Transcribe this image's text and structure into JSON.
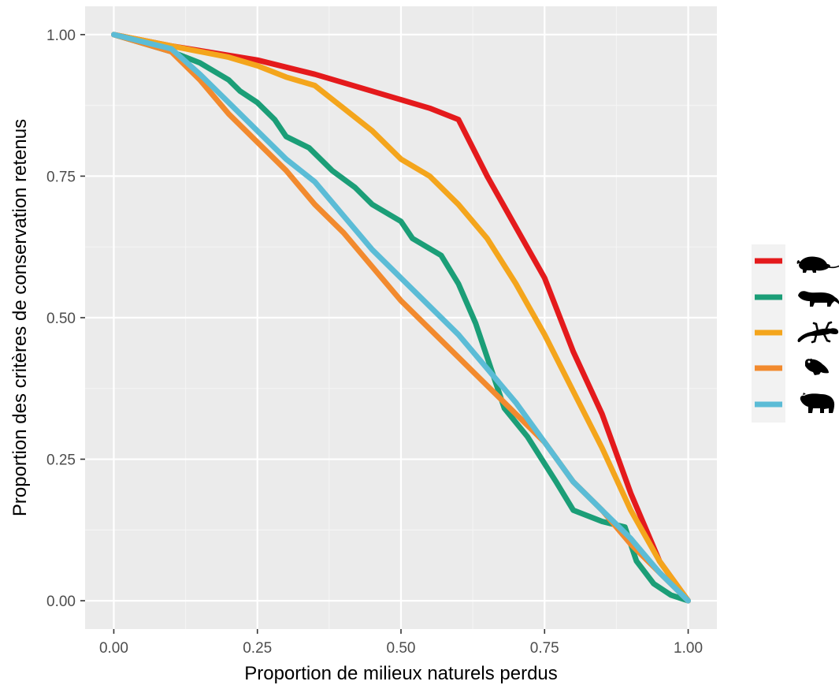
{
  "chart_data": {
    "type": "line",
    "title": "",
    "xlabel": "Proportion de milieux naturels perdus",
    "ylabel": "Proportion des critères de conservation retenus",
    "xlim": [
      -0.05,
      1.05
    ],
    "ylim": [
      -0.05,
      1.05
    ],
    "x_ticks": [
      "0.00",
      "0.25",
      "0.50",
      "0.75",
      "1.00"
    ],
    "y_ticks": [
      "0.00",
      "0.25",
      "0.50",
      "0.75",
      "1.00"
    ],
    "grid": true,
    "legend_position": "right",
    "series": [
      {
        "icon": "rodent-icon",
        "color": "#E41A1C",
        "points": [
          [
            0,
            1.0
          ],
          [
            0.1,
            0.98
          ],
          [
            0.25,
            0.955
          ],
          [
            0.35,
            0.93
          ],
          [
            0.45,
            0.9
          ],
          [
            0.55,
            0.87
          ],
          [
            0.6,
            0.85
          ],
          [
            0.65,
            0.75
          ],
          [
            0.7,
            0.66
          ],
          [
            0.75,
            0.57
          ],
          [
            0.8,
            0.44
          ],
          [
            0.85,
            0.33
          ],
          [
            0.9,
            0.19
          ],
          [
            0.95,
            0.07
          ],
          [
            1.0,
            0.0
          ]
        ]
      },
      {
        "icon": "mustelid-icon",
        "color": "#1B9E77",
        "points": [
          [
            0,
            1.0
          ],
          [
            0.1,
            0.97
          ],
          [
            0.15,
            0.95
          ],
          [
            0.2,
            0.92
          ],
          [
            0.22,
            0.9
          ],
          [
            0.25,
            0.88
          ],
          [
            0.28,
            0.85
          ],
          [
            0.3,
            0.82
          ],
          [
            0.34,
            0.8
          ],
          [
            0.38,
            0.76
          ],
          [
            0.42,
            0.73
          ],
          [
            0.45,
            0.7
          ],
          [
            0.5,
            0.67
          ],
          [
            0.52,
            0.64
          ],
          [
            0.57,
            0.61
          ],
          [
            0.6,
            0.56
          ],
          [
            0.63,
            0.49
          ],
          [
            0.65,
            0.43
          ],
          [
            0.68,
            0.34
          ],
          [
            0.72,
            0.29
          ],
          [
            0.77,
            0.21
          ],
          [
            0.8,
            0.16
          ],
          [
            0.85,
            0.14
          ],
          [
            0.89,
            0.13
          ],
          [
            0.91,
            0.07
          ],
          [
            0.94,
            0.03
          ],
          [
            0.97,
            0.01
          ],
          [
            1.0,
            0.0
          ]
        ]
      },
      {
        "icon": "salamander-icon",
        "color": "#F4A51C",
        "points": [
          [
            0,
            1.0
          ],
          [
            0.1,
            0.98
          ],
          [
            0.2,
            0.96
          ],
          [
            0.25,
            0.945
          ],
          [
            0.3,
            0.925
          ],
          [
            0.35,
            0.91
          ],
          [
            0.4,
            0.87
          ],
          [
            0.45,
            0.83
          ],
          [
            0.5,
            0.78
          ],
          [
            0.55,
            0.75
          ],
          [
            0.6,
            0.7
          ],
          [
            0.65,
            0.64
          ],
          [
            0.7,
            0.56
          ],
          [
            0.75,
            0.47
          ],
          [
            0.8,
            0.37
          ],
          [
            0.85,
            0.27
          ],
          [
            0.9,
            0.16
          ],
          [
            0.95,
            0.07
          ],
          [
            1.0,
            0.0
          ]
        ]
      },
      {
        "icon": "frog-icon",
        "color": "#F28A2E",
        "points": [
          [
            0,
            1.0
          ],
          [
            0.1,
            0.97
          ],
          [
            0.15,
            0.92
          ],
          [
            0.2,
            0.86
          ],
          [
            0.25,
            0.81
          ],
          [
            0.3,
            0.76
          ],
          [
            0.35,
            0.7
          ],
          [
            0.4,
            0.65
          ],
          [
            0.45,
            0.59
          ],
          [
            0.5,
            0.53
          ],
          [
            0.55,
            0.48
          ],
          [
            0.6,
            0.43
          ],
          [
            0.65,
            0.38
          ],
          [
            0.7,
            0.33
          ],
          [
            0.75,
            0.28
          ],
          [
            0.8,
            0.21
          ],
          [
            0.85,
            0.16
          ],
          [
            0.9,
            0.1
          ],
          [
            0.95,
            0.05
          ],
          [
            1.0,
            0.0
          ]
        ]
      },
      {
        "icon": "bear-icon",
        "color": "#5BBCD6",
        "points": [
          [
            0,
            1.0
          ],
          [
            0.1,
            0.975
          ],
          [
            0.15,
            0.93
          ],
          [
            0.2,
            0.88
          ],
          [
            0.25,
            0.83
          ],
          [
            0.3,
            0.78
          ],
          [
            0.35,
            0.74
          ],
          [
            0.4,
            0.68
          ],
          [
            0.45,
            0.62
          ],
          [
            0.5,
            0.57
          ],
          [
            0.55,
            0.52
          ],
          [
            0.6,
            0.47
          ],
          [
            0.65,
            0.41
          ],
          [
            0.7,
            0.35
          ],
          [
            0.75,
            0.28
          ],
          [
            0.8,
            0.21
          ],
          [
            0.85,
            0.16
          ],
          [
            0.9,
            0.11
          ],
          [
            0.95,
            0.05
          ],
          [
            1.0,
            0.0
          ]
        ]
      }
    ]
  }
}
